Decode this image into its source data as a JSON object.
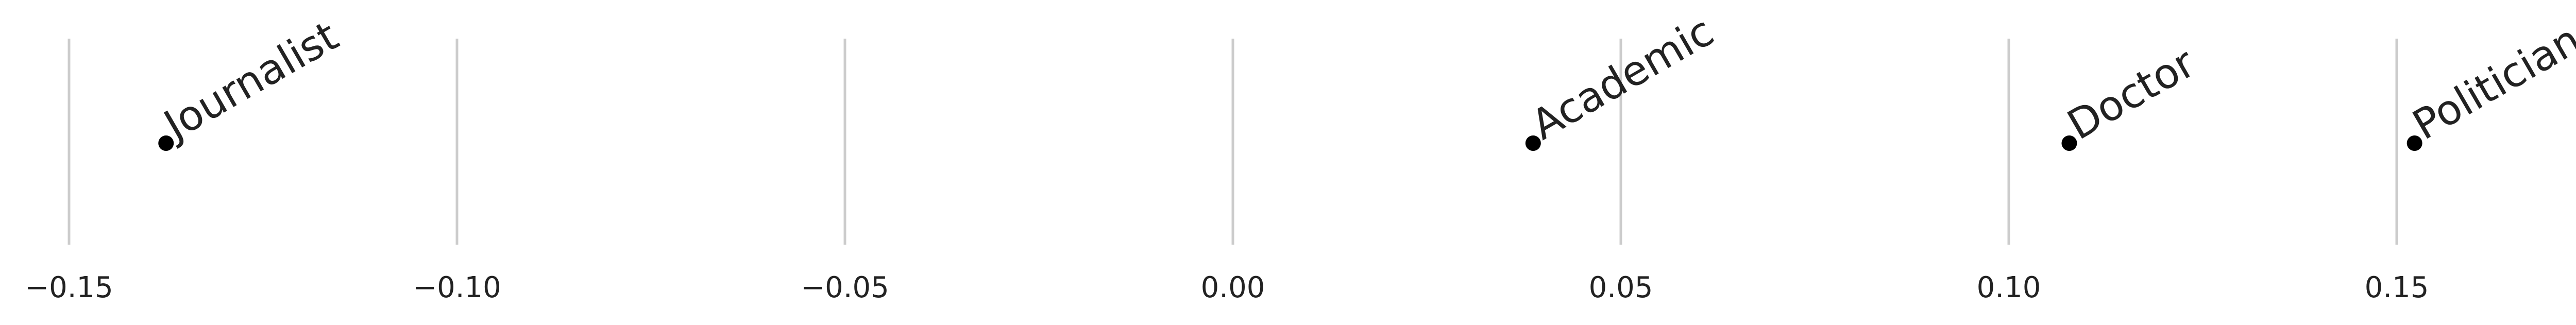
{
  "chart_data": {
    "type": "scatter",
    "title": "",
    "xlabel": "",
    "ylabel": "",
    "xlim": [
      -0.157,
      0.176
    ],
    "grid": "vertical",
    "x_ticks": [
      -0.15,
      -0.1,
      -0.05,
      0.0,
      0.05,
      0.1,
      0.15
    ],
    "x_tick_labels": [
      "−0.15",
      "−0.10",
      "−0.05",
      "0.00",
      "0.05",
      "0.10",
      "0.15"
    ],
    "points": [
      {
        "label": "Journalist",
        "x": -0.1375
      },
      {
        "label": "Academic",
        "x": 0.0387
      },
      {
        "label": "Doctor",
        "x": 0.1078
      },
      {
        "label": "Politician",
        "x": 0.1523
      }
    ],
    "colors": {
      "point": "#000000",
      "grid": "#cccccc",
      "text": "#222222"
    }
  }
}
